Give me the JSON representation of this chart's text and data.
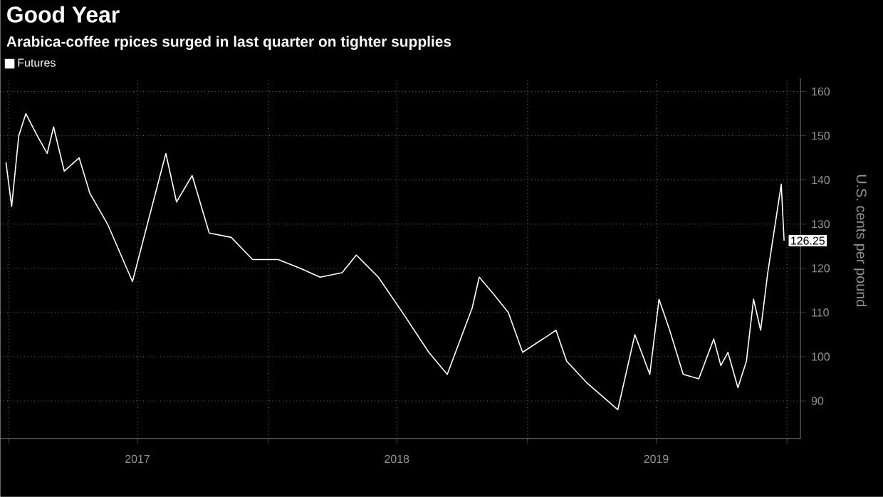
{
  "chart_data": {
    "type": "line",
    "title": "Good Year",
    "subtitle": "Arabica-coffee rpices surged in last quarter on tighter supplies",
    "ylabel": "U.S. cents per pound",
    "series": [
      {
        "name": "Futures",
        "color": "#ffffff",
        "x": [
          "2016-12-28",
          "2017-01-05",
          "2017-01-15",
          "2017-01-25",
          "2017-02-10",
          "2017-02-24",
          "2017-03-05",
          "2017-03-20",
          "2017-04-10",
          "2017-04-25",
          "2017-05-20",
          "2017-06-24",
          "2017-07-15",
          "2017-08-10",
          "2017-08-25",
          "2017-09-16",
          "2017-10-10",
          "2017-11-10",
          "2017-12-10",
          "2018-01-15",
          "2018-02-15",
          "2018-03-15",
          "2018-04-15",
          "2018-05-05",
          "2018-06-05",
          "2018-07-09",
          "2018-08-15",
          "2018-09-10",
          "2018-10-15",
          "2018-10-25",
          "2018-11-15",
          "2018-12-05",
          "2018-12-25",
          "2019-02-01",
          "2019-02-10",
          "2019-02-25",
          "2019-03-26",
          "2019-05-08",
          "2019-06-01",
          "2019-06-22",
          "2019-07-05",
          "2019-07-20",
          "2019-08-08",
          "2019-08-30",
          "2019-09-20",
          "2019-09-30",
          "2019-10-10",
          "2019-10-24",
          "2019-11-05",
          "2019-11-15",
          "2019-11-25",
          "2019-12-05",
          "2019-12-24",
          "2019-12-28"
        ],
        "values": [
          144,
          134,
          150,
          155,
          150,
          146,
          152,
          142,
          145,
          137,
          130,
          117,
          130,
          146,
          135,
          141,
          128,
          127,
          122,
          122,
          120,
          118,
          119,
          123,
          118,
          110,
          101,
          96,
          111,
          118,
          114,
          110,
          101,
          105,
          106,
          99,
          94,
          88,
          105,
          96,
          113,
          106,
          96,
          95,
          104,
          98,
          101,
          93,
          99,
          113,
          106,
          119,
          139,
          126.25
        ]
      }
    ],
    "xlim": [
      "2016-12-20",
      "2020-01-20"
    ],
    "xticks": [
      {
        "value": "2017-01-01",
        "label": null
      },
      {
        "value": "2017-07-01",
        "label": "2017"
      },
      {
        "value": "2018-01-01",
        "label": null
      },
      {
        "value": "2018-07-01",
        "label": "2018"
      },
      {
        "value": "2019-01-01",
        "label": null
      },
      {
        "value": "2019-07-01",
        "label": "2019"
      },
      {
        "value": "2020-01-01",
        "label": null
      }
    ],
    "ylim": [
      81.5,
      163
    ],
    "yticks": [
      90,
      100,
      110,
      120,
      130,
      140,
      150,
      160
    ],
    "grid": true,
    "legend": "top left",
    "annotations": [
      {
        "text": "126.25",
        "x": "2019-12-28",
        "y": 126.25
      }
    ]
  }
}
